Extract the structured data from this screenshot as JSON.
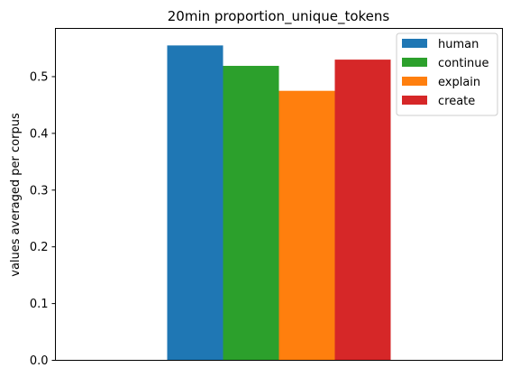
{
  "chart_data": {
    "type": "bar",
    "title": "20min proportion_unique_tokens",
    "xlabel": "",
    "ylabel": "values averaged per corpus",
    "ylim": [
      0,
      0.585
    ],
    "yticks": [
      0.0,
      0.1,
      0.2,
      0.3,
      0.4,
      0.5
    ],
    "ytick_labels": [
      "0.0",
      "0.1",
      "0.2",
      "0.3",
      "0.4",
      "0.5"
    ],
    "grid": false,
    "legend_position": "top-right",
    "series": [
      {
        "name": "human",
        "value": 0.555,
        "color": "#1f77b4"
      },
      {
        "name": "continue",
        "value": 0.519,
        "color": "#2ca02c"
      },
      {
        "name": "explain",
        "value": 0.475,
        "color": "#ff7f0e"
      },
      {
        "name": "create",
        "value": 0.53,
        "color": "#d62728"
      }
    ]
  }
}
